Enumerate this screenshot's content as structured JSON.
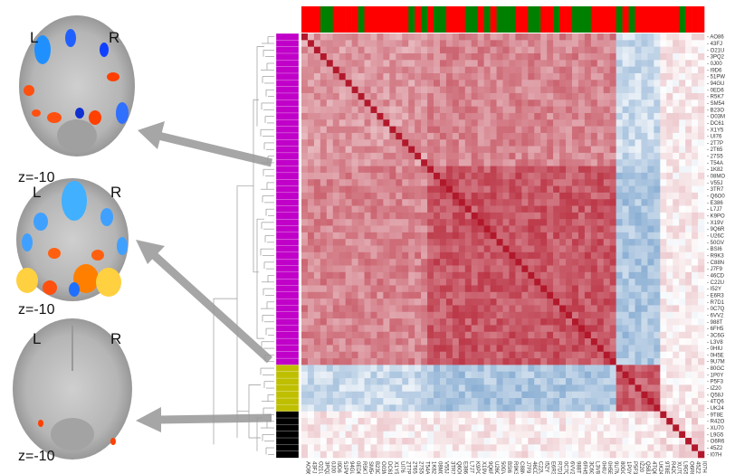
{
  "brains": [
    {
      "left_label": "L",
      "right_label": "R",
      "slice_label": "z=-10"
    },
    {
      "left_label": "L",
      "right_label": "R",
      "slice_label": "z=-10"
    },
    {
      "left_label": "L",
      "right_label": "R",
      "slice_label": "z=-10"
    }
  ],
  "colors": {
    "group_magenta": "#c000c8",
    "group_olive": "#bfbf00",
    "group_black": "#000000",
    "bar_red": "#ff0000",
    "bar_green": "#008000",
    "arrow": "#a6a6a6"
  },
  "chart_data": {
    "type": "heatmap",
    "title": "",
    "labels": [
      "AO86",
      "43FJ",
      "O21U",
      "3PQ2",
      "0J00",
      "I9D6",
      "51PW",
      "94GU",
      "0ED6",
      "R5K7",
      "SM54",
      "B23O",
      "O03M",
      "DC61",
      "X1Y5",
      "UI76",
      "2T7P",
      "2T65",
      "27S5",
      "T54A",
      "1K82",
      "08MO",
      "V55J",
      "3TR7",
      "Q6O0",
      "E386",
      "L7J7",
      "K9PO",
      "X19V",
      "9Q6R",
      "U26C",
      "50GV",
      "BSI6",
      "R9K3",
      "C88N",
      "J7F9",
      "46CD",
      "C22U",
      "I52Y",
      "E6R3",
      "R7D1",
      "0C7Q",
      "6VV2",
      "988T",
      "6FH5",
      "3C6G",
      "L3V8",
      "0HIU",
      "0H5E",
      "9U7M",
      "80GC",
      "1P0Y",
      "P5F3",
      "IZ20",
      "Q58J",
      "4TQ6",
      "UK24",
      "9T8E",
      "R42O",
      "XU70",
      "L9G5",
      "O6R6",
      "45Z2",
      "I07H"
    ],
    "group_sizes": {
      "magenta": 50,
      "olive": 7,
      "black": 7
    },
    "top_bar": [
      "R",
      "R",
      "R",
      "G",
      "G",
      "R",
      "R",
      "R",
      "R",
      "G",
      "R",
      "R",
      "R",
      "R",
      "R",
      "R",
      "R",
      "G",
      "R",
      "G",
      "R",
      "G",
      "G",
      "R",
      "R",
      "R",
      "G",
      "G",
      "R",
      "G",
      "R",
      "G",
      "G",
      "G",
      "R",
      "R",
      "G",
      "G",
      "R",
      "R",
      "G",
      "R",
      "R",
      "G",
      "G",
      "G",
      "R",
      "R",
      "R",
      "R",
      "G",
      "R",
      "G",
      "R",
      "R",
      "R",
      "R",
      "R",
      "R",
      "R",
      "G",
      "R",
      "R",
      "R"
    ],
    "block_mean_correlation": {
      "magenta_a_magenta_a": 0.28,
      "magenta_b_magenta_b": 0.45,
      "magenta_a_magenta_b": 0.33,
      "magenta_olive": -0.18,
      "olive_olive": 0.42,
      "black_black": 0.08,
      "black_other": 0.05,
      "diagonal": 1.0
    },
    "color_range": [
      -1,
      1
    ]
  }
}
